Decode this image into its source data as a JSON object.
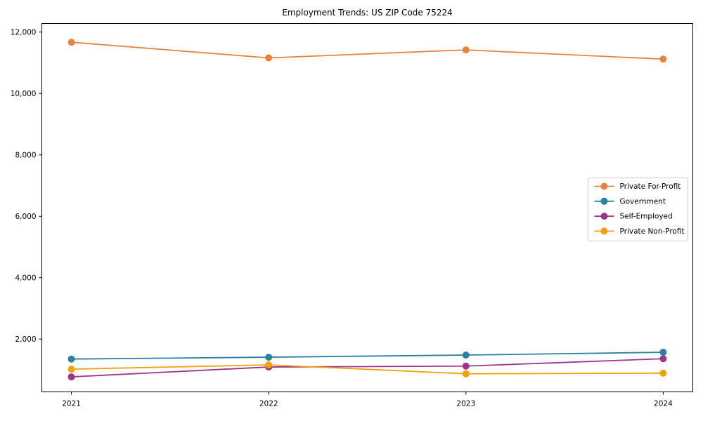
{
  "figure": {
    "background": "#ffffff",
    "spine_color": "#000000",
    "text_color": "#000000"
  },
  "chart_data": {
    "type": "line",
    "title": "Employment Trends: US ZIP Code 75224",
    "xlabel": "",
    "ylabel": "",
    "grid": false,
    "x": [
      2021,
      2022,
      2023,
      2024
    ],
    "x_tick_labels": [
      "2021",
      "2022",
      "2023",
      "2024"
    ],
    "y_ticks": [
      2000,
      4000,
      6000,
      8000,
      10000,
      12000
    ],
    "y_tick_labels": [
      "2,000",
      "4,000",
      "6,000",
      "8,000",
      "10,000",
      "12,000"
    ],
    "xlim": [
      2020.85,
      2024.15
    ],
    "ylim": [
      280,
      12280
    ],
    "series": [
      {
        "name": "Private For-Profit",
        "color": "#e8823e",
        "marker": "circle",
        "values": [
          11670,
          11160,
          11420,
          11120
        ]
      },
      {
        "name": "Government",
        "color": "#2e80a0",
        "marker": "circle",
        "values": [
          1350,
          1410,
          1480,
          1570
        ]
      },
      {
        "name": "Self-Employed",
        "color": "#9c3587",
        "marker": "circle",
        "values": [
          770,
          1090,
          1120,
          1360
        ]
      },
      {
        "name": "Private Non-Profit",
        "color": "#eda20c",
        "marker": "circle",
        "values": [
          1020,
          1160,
          870,
          890
        ]
      }
    ],
    "legend": {
      "position": "center-right",
      "border_color": "#cccccc",
      "background": "#ffffff",
      "entries": [
        "Private For-Profit",
        "Government",
        "Self-Employed",
        "Private Non-Profit"
      ]
    }
  }
}
